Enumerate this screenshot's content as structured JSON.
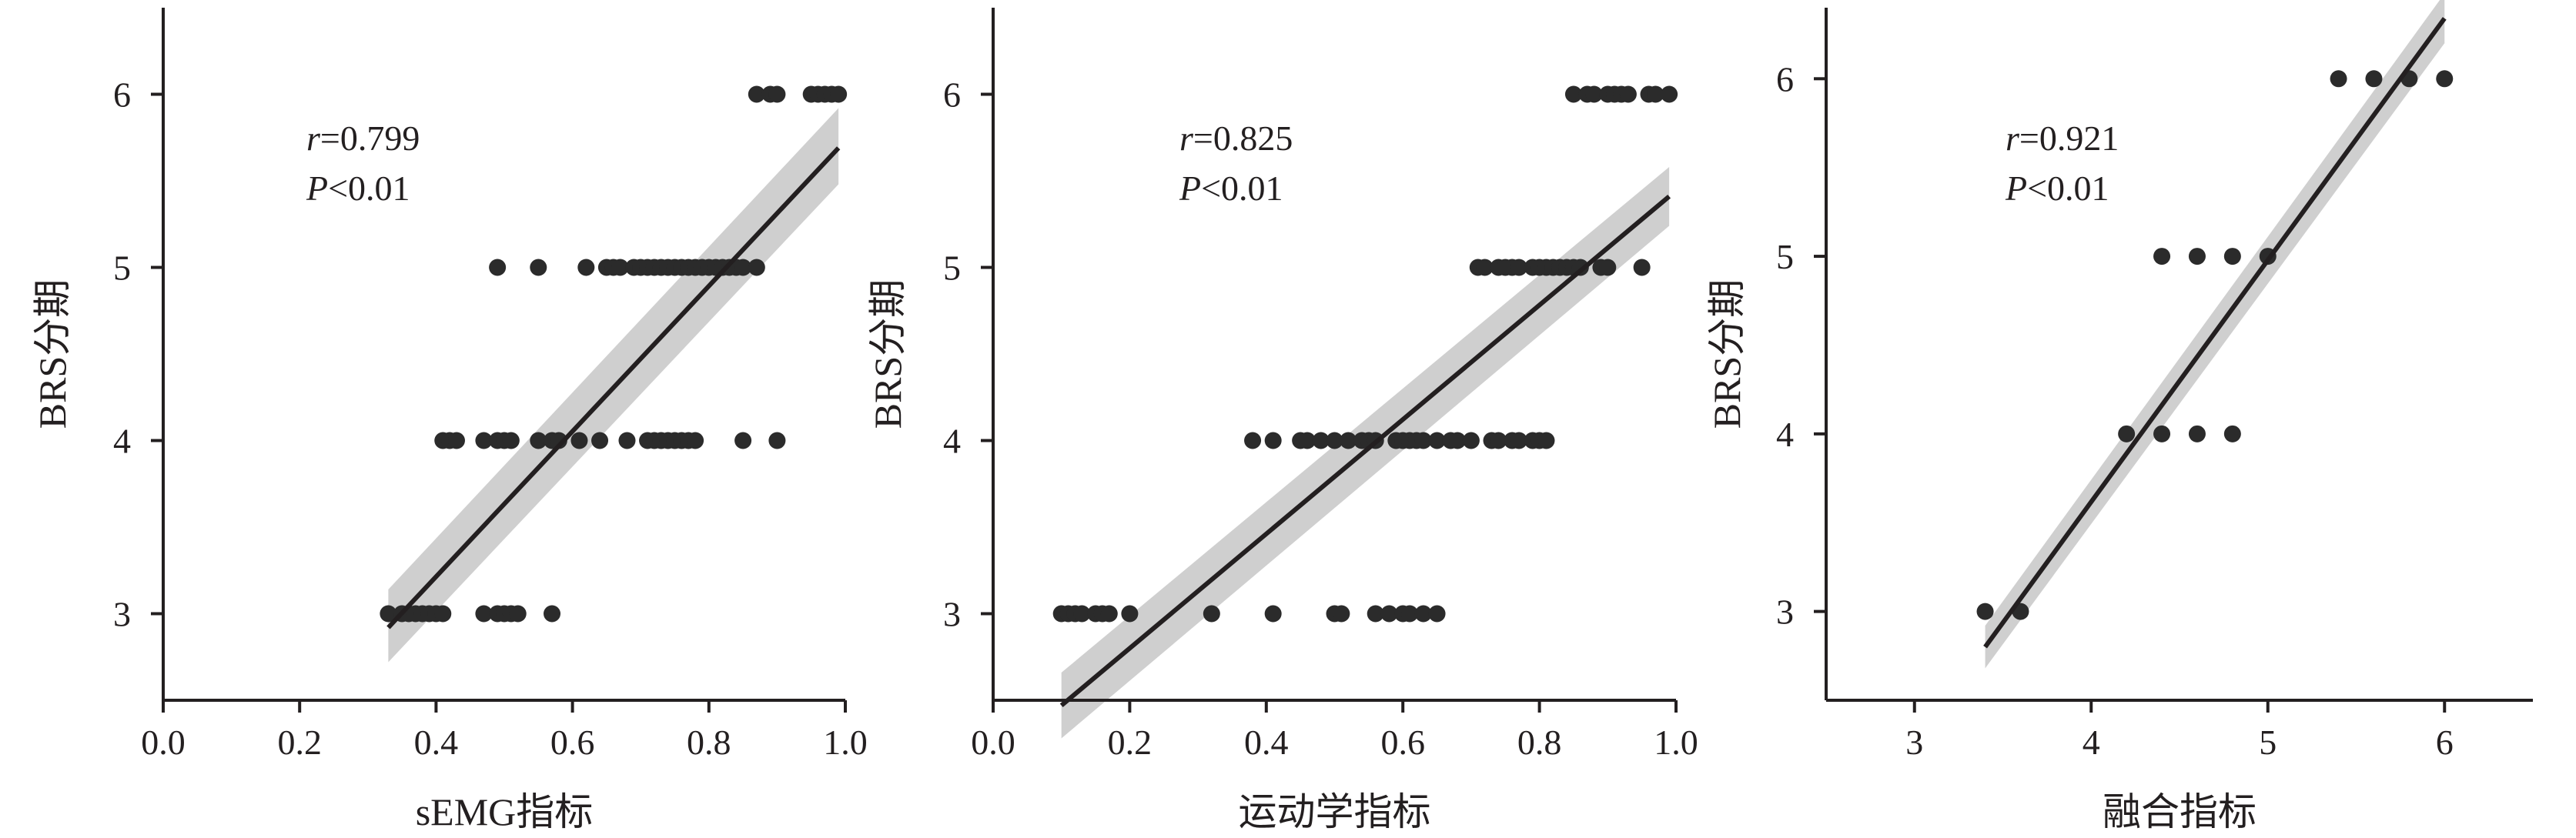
{
  "chart_data": [
    {
      "type": "scatter",
      "xlabel": "sEMG指标",
      "ylabel": "BRS分期",
      "xlim": [
        0.0,
        1.0
      ],
      "ylim": [
        2.5,
        6.5
      ],
      "xticks": [
        "0.0",
        "0.2",
        "0.4",
        "0.6",
        "0.8",
        "1.0"
      ],
      "yticks": [
        "3",
        "4",
        "5",
        "6"
      ],
      "stat_r": "=0.799",
      "stat_p": "<0.01",
      "fit": {
        "x": [
          0.33,
          0.99
        ],
        "y": [
          2.92,
          5.69
        ],
        "ci_lower": [
          2.72,
          5.48
        ],
        "ci_upper": [
          3.14,
          5.92
        ]
      },
      "points": [
        {
          "x": 0.33,
          "y": 3
        },
        {
          "x": 0.35,
          "y": 3
        },
        {
          "x": 0.36,
          "y": 3
        },
        {
          "x": 0.37,
          "y": 3
        },
        {
          "x": 0.38,
          "y": 3
        },
        {
          "x": 0.39,
          "y": 3
        },
        {
          "x": 0.4,
          "y": 3
        },
        {
          "x": 0.41,
          "y": 3
        },
        {
          "x": 0.47,
          "y": 3
        },
        {
          "x": 0.49,
          "y": 3
        },
        {
          "x": 0.5,
          "y": 3
        },
        {
          "x": 0.51,
          "y": 3
        },
        {
          "x": 0.52,
          "y": 3
        },
        {
          "x": 0.57,
          "y": 3
        },
        {
          "x": 0.41,
          "y": 4
        },
        {
          "x": 0.42,
          "y": 4
        },
        {
          "x": 0.43,
          "y": 4
        },
        {
          "x": 0.47,
          "y": 4
        },
        {
          "x": 0.49,
          "y": 4
        },
        {
          "x": 0.5,
          "y": 4
        },
        {
          "x": 0.51,
          "y": 4
        },
        {
          "x": 0.55,
          "y": 4
        },
        {
          "x": 0.57,
          "y": 4
        },
        {
          "x": 0.58,
          "y": 4
        },
        {
          "x": 0.61,
          "y": 4
        },
        {
          "x": 0.64,
          "y": 4
        },
        {
          "x": 0.68,
          "y": 4
        },
        {
          "x": 0.71,
          "y": 4
        },
        {
          "x": 0.72,
          "y": 4
        },
        {
          "x": 0.73,
          "y": 4
        },
        {
          "x": 0.74,
          "y": 4
        },
        {
          "x": 0.75,
          "y": 4
        },
        {
          "x": 0.76,
          "y": 4
        },
        {
          "x": 0.77,
          "y": 4
        },
        {
          "x": 0.78,
          "y": 4
        },
        {
          "x": 0.85,
          "y": 4
        },
        {
          "x": 0.9,
          "y": 4
        },
        {
          "x": 0.49,
          "y": 5
        },
        {
          "x": 0.55,
          "y": 5
        },
        {
          "x": 0.62,
          "y": 5
        },
        {
          "x": 0.65,
          "y": 5
        },
        {
          "x": 0.66,
          "y": 5
        },
        {
          "x": 0.67,
          "y": 5
        },
        {
          "x": 0.69,
          "y": 5
        },
        {
          "x": 0.7,
          "y": 5
        },
        {
          "x": 0.71,
          "y": 5
        },
        {
          "x": 0.72,
          "y": 5
        },
        {
          "x": 0.73,
          "y": 5
        },
        {
          "x": 0.74,
          "y": 5
        },
        {
          "x": 0.75,
          "y": 5
        },
        {
          "x": 0.76,
          "y": 5
        },
        {
          "x": 0.77,
          "y": 5
        },
        {
          "x": 0.78,
          "y": 5
        },
        {
          "x": 0.79,
          "y": 5
        },
        {
          "x": 0.8,
          "y": 5
        },
        {
          "x": 0.81,
          "y": 5
        },
        {
          "x": 0.82,
          "y": 5
        },
        {
          "x": 0.83,
          "y": 5
        },
        {
          "x": 0.84,
          "y": 5
        },
        {
          "x": 0.85,
          "y": 5
        },
        {
          "x": 0.87,
          "y": 5
        },
        {
          "x": 0.87,
          "y": 6
        },
        {
          "x": 0.89,
          "y": 6
        },
        {
          "x": 0.9,
          "y": 6
        },
        {
          "x": 0.95,
          "y": 6
        },
        {
          "x": 0.96,
          "y": 6
        },
        {
          "x": 0.97,
          "y": 6
        },
        {
          "x": 0.98,
          "y": 6
        },
        {
          "x": 0.99,
          "y": 6
        }
      ]
    },
    {
      "type": "scatter",
      "xlabel": "运动学指标",
      "ylabel": "BRS分期",
      "xlim": [
        0.0,
        1.0
      ],
      "ylim": [
        2.5,
        6.5
      ],
      "xticks": [
        "0.0",
        "0.2",
        "0.4",
        "0.6",
        "0.8",
        "1.0"
      ],
      "yticks": [
        "3",
        "4",
        "5",
        "6"
      ],
      "stat_r": "=0.825",
      "stat_p": "<0.01",
      "fit": {
        "x": [
          0.1,
          0.99
        ],
        "y": [
          2.47,
          5.41
        ],
        "ci_lower": [
          2.28,
          5.24
        ],
        "ci_upper": [
          2.66,
          5.58
        ]
      },
      "points": [
        {
          "x": 0.1,
          "y": 3
        },
        {
          "x": 0.11,
          "y": 3
        },
        {
          "x": 0.12,
          "y": 3
        },
        {
          "x": 0.13,
          "y": 3
        },
        {
          "x": 0.15,
          "y": 3
        },
        {
          "x": 0.16,
          "y": 3
        },
        {
          "x": 0.17,
          "y": 3
        },
        {
          "x": 0.2,
          "y": 3
        },
        {
          "x": 0.32,
          "y": 3
        },
        {
          "x": 0.41,
          "y": 3
        },
        {
          "x": 0.5,
          "y": 3
        },
        {
          "x": 0.51,
          "y": 3
        },
        {
          "x": 0.56,
          "y": 3
        },
        {
          "x": 0.58,
          "y": 3
        },
        {
          "x": 0.6,
          "y": 3
        },
        {
          "x": 0.61,
          "y": 3
        },
        {
          "x": 0.63,
          "y": 3
        },
        {
          "x": 0.65,
          "y": 3
        },
        {
          "x": 0.38,
          "y": 4
        },
        {
          "x": 0.41,
          "y": 4
        },
        {
          "x": 0.45,
          "y": 4
        },
        {
          "x": 0.46,
          "y": 4
        },
        {
          "x": 0.48,
          "y": 4
        },
        {
          "x": 0.5,
          "y": 4
        },
        {
          "x": 0.52,
          "y": 4
        },
        {
          "x": 0.54,
          "y": 4
        },
        {
          "x": 0.55,
          "y": 4
        },
        {
          "x": 0.56,
          "y": 4
        },
        {
          "x": 0.59,
          "y": 4
        },
        {
          "x": 0.6,
          "y": 4
        },
        {
          "x": 0.61,
          "y": 4
        },
        {
          "x": 0.62,
          "y": 4
        },
        {
          "x": 0.63,
          "y": 4
        },
        {
          "x": 0.65,
          "y": 4
        },
        {
          "x": 0.67,
          "y": 4
        },
        {
          "x": 0.68,
          "y": 4
        },
        {
          "x": 0.7,
          "y": 4
        },
        {
          "x": 0.73,
          "y": 4
        },
        {
          "x": 0.74,
          "y": 4
        },
        {
          "x": 0.76,
          "y": 4
        },
        {
          "x": 0.77,
          "y": 4
        },
        {
          "x": 0.79,
          "y": 4
        },
        {
          "x": 0.8,
          "y": 4
        },
        {
          "x": 0.81,
          "y": 4
        },
        {
          "x": 0.71,
          "y": 5
        },
        {
          "x": 0.72,
          "y": 5
        },
        {
          "x": 0.74,
          "y": 5
        },
        {
          "x": 0.75,
          "y": 5
        },
        {
          "x": 0.76,
          "y": 5
        },
        {
          "x": 0.77,
          "y": 5
        },
        {
          "x": 0.79,
          "y": 5
        },
        {
          "x": 0.8,
          "y": 5
        },
        {
          "x": 0.81,
          "y": 5
        },
        {
          "x": 0.82,
          "y": 5
        },
        {
          "x": 0.83,
          "y": 5
        },
        {
          "x": 0.84,
          "y": 5
        },
        {
          "x": 0.85,
          "y": 5
        },
        {
          "x": 0.86,
          "y": 5
        },
        {
          "x": 0.89,
          "y": 5
        },
        {
          "x": 0.9,
          "y": 5
        },
        {
          "x": 0.95,
          "y": 5
        },
        {
          "x": 0.85,
          "y": 6
        },
        {
          "x": 0.87,
          "y": 6
        },
        {
          "x": 0.88,
          "y": 6
        },
        {
          "x": 0.9,
          "y": 6
        },
        {
          "x": 0.91,
          "y": 6
        },
        {
          "x": 0.92,
          "y": 6
        },
        {
          "x": 0.93,
          "y": 6
        },
        {
          "x": 0.96,
          "y": 6
        },
        {
          "x": 0.97,
          "y": 6
        },
        {
          "x": 0.99,
          "y": 6
        }
      ]
    },
    {
      "type": "scatter",
      "xlabel": "融合指标",
      "ylabel": "BRS分期",
      "xlim": [
        2.5,
        6.5
      ],
      "ylim": [
        2.5,
        6.4
      ],
      "xticks": [
        "3",
        "4",
        "5",
        "6"
      ],
      "yticks": [
        "3",
        "4",
        "5",
        "6"
      ],
      "stat_r": "=0.921",
      "stat_p": "<0.01",
      "fit": {
        "x": [
          3.4,
          6.0
        ],
        "y": [
          2.8,
          6.34
        ],
        "ci_lower": [
          2.68,
          6.2
        ],
        "ci_upper": [
          2.92,
          6.48
        ]
      },
      "points": [
        {
          "x": 3.4,
          "y": 3
        },
        {
          "x": 3.6,
          "y": 3
        },
        {
          "x": 4.2,
          "y": 4
        },
        {
          "x": 4.4,
          "y": 4
        },
        {
          "x": 4.6,
          "y": 4
        },
        {
          "x": 4.8,
          "y": 4
        },
        {
          "x": 4.4,
          "y": 5
        },
        {
          "x": 4.6,
          "y": 5
        },
        {
          "x": 4.8,
          "y": 5
        },
        {
          "x": 5.0,
          "y": 5
        },
        {
          "x": 5.4,
          "y": 6
        },
        {
          "x": 5.6,
          "y": 6
        },
        {
          "x": 5.8,
          "y": 6
        },
        {
          "x": 6.0,
          "y": 6
        }
      ]
    }
  ]
}
